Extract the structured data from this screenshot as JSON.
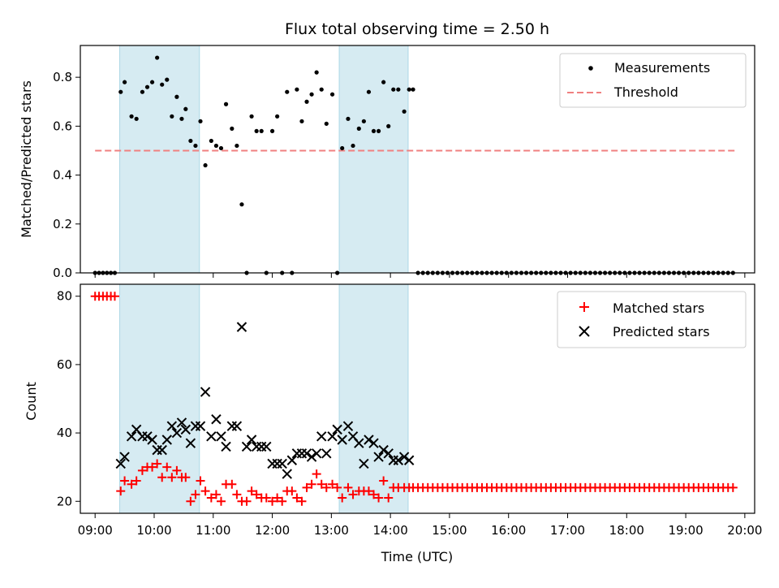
{
  "chart_data": [
    {
      "type": "scatter",
      "title": "Flux total observing time = 2.50 h",
      "xlabel": "",
      "ylabel": "Matched/Predicted stars",
      "xlim": [
        "08:45",
        "20:10"
      ],
      "ylim": [
        0,
        0.93
      ],
      "yticks": [
        "0.0",
        "0.2",
        "0.4",
        "0.6",
        "0.8"
      ],
      "grid": false,
      "legend_position": "top-right",
      "shaded_intervals": [
        [
          "09:25",
          "10:46"
        ],
        [
          "13:08",
          "14:18"
        ]
      ],
      "threshold": {
        "name": "Threshold",
        "y": 0.5,
        "x_range": [
          "09:00",
          "19:50"
        ],
        "color": "#f08080"
      },
      "series": [
        {
          "name": "Measurements",
          "marker": "dot",
          "color": "#000000",
          "x": [
            "09:00",
            "09:04",
            "09:08",
            "09:12",
            "09:16",
            "09:20",
            "09:26",
            "09:30",
            "09:37",
            "09:42",
            "09:48",
            "09:53",
            "09:58",
            "10:03",
            "10:08",
            "10:13",
            "10:18",
            "10:23",
            "10:28",
            "10:32",
            "10:37",
            "10:42",
            "10:47",
            "10:52",
            "10:58",
            "11:03",
            "11:08",
            "11:13",
            "11:19",
            "11:24",
            "11:29",
            "11:34",
            "11:39",
            "11:44",
            "11:49",
            "11:54",
            "12:00",
            "12:05",
            "12:10",
            "12:15",
            "12:20",
            "12:25",
            "12:30",
            "12:35",
            "12:40",
            "12:45",
            "12:50",
            "12:55",
            "13:01",
            "13:06",
            "13:11",
            "13:17",
            "13:22",
            "13:28",
            "13:33",
            "13:38",
            "13:43",
            "13:48",
            "13:53",
            "13:58",
            "14:03",
            "14:08",
            "14:14",
            "14:19",
            "14:23",
            "14:28",
            "14:33",
            "14:38",
            "14:43",
            "14:48",
            "14:53",
            "14:58",
            "15:03",
            "15:08",
            "15:13",
            "15:18",
            "15:23",
            "15:28",
            "15:33",
            "15:38",
            "15:43",
            "15:48",
            "15:53",
            "15:58",
            "16:03",
            "16:08",
            "16:13",
            "16:18",
            "16:23",
            "16:28",
            "16:33",
            "16:38",
            "16:43",
            "16:48",
            "16:53",
            "16:58",
            "17:03",
            "17:08",
            "17:13",
            "17:18",
            "17:23",
            "17:28",
            "17:33",
            "17:38",
            "17:43",
            "17:48",
            "17:53",
            "17:58",
            "18:03",
            "18:08",
            "18:13",
            "18:18",
            "18:23",
            "18:28",
            "18:33",
            "18:38",
            "18:43",
            "18:48",
            "18:53",
            "18:58",
            "19:03",
            "19:08",
            "19:13",
            "19:18",
            "19:23",
            "19:28",
            "19:33",
            "19:38",
            "19:43",
            "19:48"
          ],
          "y": [
            0,
            0,
            0,
            0,
            0,
            0,
            0.74,
            0.78,
            0.64,
            0.63,
            0.74,
            0.76,
            0.78,
            0.88,
            0.77,
            0.79,
            0.64,
            0.72,
            0.63,
            0.67,
            0.54,
            0.52,
            0.62,
            0.44,
            0.54,
            0.52,
            0.51,
            0.69,
            0.59,
            0.52,
            0.28,
            0,
            0.64,
            0.58,
            0.58,
            0,
            0.58,
            0.64,
            0,
            0.74,
            0,
            0.75,
            0.62,
            0.7,
            0.73,
            0.82,
            0.75,
            0.61,
            0.73,
            0,
            0.51,
            0.63,
            0.52,
            0.59,
            0.62,
            0.74,
            0.58,
            0.58,
            0.78,
            0.6,
            0.75,
            0.75,
            0.66,
            0.75,
            0.75,
            0,
            0,
            0,
            0,
            0,
            0,
            0,
            0,
            0,
            0,
            0,
            0,
            0,
            0,
            0,
            0,
            0,
            0,
            0,
            0,
            0,
            0,
            0,
            0,
            0,
            0,
            0,
            0,
            0,
            0,
            0,
            0,
            0,
            0,
            0,
            0,
            0,
            0,
            0,
            0,
            0,
            0,
            0,
            0,
            0,
            0,
            0,
            0,
            0,
            0,
            0,
            0,
            0,
            0,
            0,
            0,
            0,
            0,
            0,
            0,
            0,
            0,
            0,
            0,
            0
          ]
        }
      ]
    },
    {
      "type": "scatter",
      "title": "",
      "xlabel": "Time (UTC)",
      "ylabel": "Count",
      "xlim": [
        "08:45",
        "20:10"
      ],
      "ylim": [
        16.5,
        83.5
      ],
      "yticks": [
        "20",
        "40",
        "60",
        "80"
      ],
      "xticks": [
        "09:00",
        "10:00",
        "11:00",
        "12:00",
        "13:00",
        "14:00",
        "15:00",
        "16:00",
        "17:00",
        "18:00",
        "19:00",
        "20:00"
      ],
      "grid": false,
      "legend_position": "top-right",
      "shaded_intervals": [
        [
          "09:25",
          "10:46"
        ],
        [
          "13:08",
          "14:18"
        ]
      ],
      "series": [
        {
          "name": "Matched stars",
          "marker": "plus",
          "color": "#ff0000",
          "x": [
            "09:00",
            "09:04",
            "09:08",
            "09:12",
            "09:16",
            "09:20",
            "09:26",
            "09:30",
            "09:37",
            "09:42",
            "09:48",
            "09:53",
            "09:58",
            "10:03",
            "10:08",
            "10:13",
            "10:18",
            "10:23",
            "10:28",
            "10:32",
            "10:37",
            "10:42",
            "10:47",
            "10:52",
            "10:58",
            "11:03",
            "11:08",
            "11:13",
            "11:19",
            "11:24",
            "11:29",
            "11:34",
            "11:39",
            "11:44",
            "11:49",
            "11:54",
            "12:00",
            "12:05",
            "12:10",
            "12:15",
            "12:20",
            "12:25",
            "12:30",
            "12:35",
            "12:40",
            "12:45",
            "12:50",
            "12:55",
            "13:01",
            "13:06",
            "13:11",
            "13:17",
            "13:22",
            "13:28",
            "13:33",
            "13:38",
            "13:43",
            "13:48",
            "13:53",
            "13:58",
            "14:03",
            "14:08",
            "14:14",
            "14:19",
            "14:23",
            "14:28",
            "14:33",
            "14:38",
            "14:43",
            "14:48",
            "14:53",
            "14:58",
            "15:03",
            "15:08",
            "15:13",
            "15:18",
            "15:23",
            "15:28",
            "15:33",
            "15:38",
            "15:43",
            "15:48",
            "15:53",
            "15:58",
            "16:03",
            "16:08",
            "16:13",
            "16:18",
            "16:23",
            "16:28",
            "16:33",
            "16:38",
            "16:43",
            "16:48",
            "16:53",
            "16:58",
            "17:03",
            "17:08",
            "17:13",
            "17:18",
            "17:23",
            "17:28",
            "17:33",
            "17:38",
            "17:43",
            "17:48",
            "17:53",
            "17:58",
            "18:03",
            "18:08",
            "18:13",
            "18:18",
            "18:23",
            "18:28",
            "18:33",
            "18:38",
            "18:43",
            "18:48",
            "18:53",
            "18:58",
            "19:03",
            "19:08",
            "19:13",
            "19:18",
            "19:23",
            "19:28",
            "19:33",
            "19:38",
            "19:43",
            "19:48"
          ],
          "y": [
            80,
            80,
            80,
            80,
            80,
            80,
            23,
            26,
            25,
            26,
            29,
            30,
            30,
            31,
            27,
            30,
            27,
            29,
            27,
            27,
            20,
            22,
            26,
            23,
            21,
            22,
            20,
            25,
            25,
            22,
            20,
            20,
            23,
            22,
            21,
            21,
            20,
            21,
            20,
            23,
            23,
            21,
            20,
            24,
            25,
            28,
            25,
            24,
            25,
            24,
            21,
            24,
            22,
            23,
            23,
            23,
            22,
            21,
            26,
            21,
            24,
            24,
            24,
            24,
            24,
            24,
            24,
            24,
            24,
            24,
            24,
            24,
            24,
            24,
            24,
            24,
            24,
            24,
            24,
            24,
            24,
            24,
            24,
            24,
            24,
            24,
            24,
            24,
            24,
            24,
            24,
            24,
            24,
            24,
            24,
            24,
            24,
            24,
            24,
            24,
            24,
            24,
            24,
            24,
            24,
            24,
            24,
            24,
            24,
            24,
            24,
            24,
            24,
            24,
            24,
            24,
            24,
            24,
            24,
            24,
            24,
            24,
            24,
            24,
            24,
            24,
            24,
            24,
            24,
            24
          ]
        },
        {
          "name": "Predicted stars",
          "marker": "x",
          "color": "#000000",
          "x": [
            "09:26",
            "09:30",
            "09:37",
            "09:42",
            "09:48",
            "09:53",
            "09:58",
            "10:03",
            "10:08",
            "10:13",
            "10:18",
            "10:23",
            "10:28",
            "10:32",
            "10:37",
            "10:42",
            "10:47",
            "10:52",
            "10:58",
            "11:03",
            "11:08",
            "11:13",
            "11:19",
            "11:24",
            "11:29",
            "11:34",
            "11:39",
            "11:44",
            "11:49",
            "11:54",
            "12:00",
            "12:05",
            "12:10",
            "12:15",
            "12:20",
            "12:25",
            "12:30",
            "12:35",
            "12:40",
            "12:45",
            "12:50",
            "12:55",
            "13:01",
            "13:06",
            "13:11",
            "13:17",
            "13:22",
            "13:28",
            "13:33",
            "13:38",
            "13:43",
            "13:48",
            "13:53",
            "13:58",
            "14:03",
            "14:08",
            "14:14",
            "14:19"
          ],
          "y": [
            31,
            33,
            39,
            41,
            39,
            39,
            38,
            35,
            35,
            38,
            42,
            40,
            43,
            41,
            37,
            42,
            42,
            52,
            39,
            44,
            39,
            36,
            42,
            42,
            71,
            36,
            38,
            36,
            36,
            36,
            31,
            31,
            31,
            28,
            32,
            34,
            34,
            34,
            33,
            34,
            39,
            34,
            39,
            41,
            38,
            42,
            39,
            37,
            31,
            38,
            37,
            33,
            35,
            34,
            32,
            32,
            33,
            32
          ]
        }
      ]
    }
  ]
}
